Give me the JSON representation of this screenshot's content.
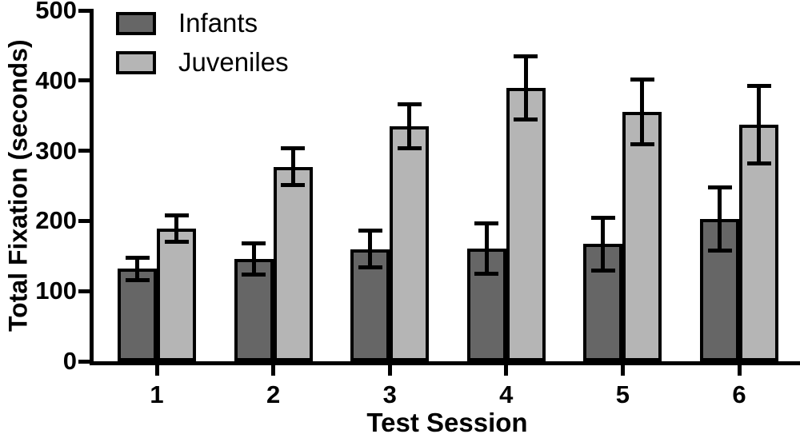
{
  "figure": {
    "background": "#ffffff",
    "axis_color": "#000000"
  },
  "chart_data": {
    "type": "bar",
    "title": "",
    "xlabel": "Test Session",
    "ylabel": "Total Fixation (seconds)",
    "categories": [
      "1",
      "2",
      "3",
      "4",
      "5",
      "6"
    ],
    "series": [
      {
        "name": "Infants",
        "color": "#666666",
        "values": [
          132,
          146,
          160,
          161,
          167,
          203
        ],
        "errors": [
          16,
          22,
          26,
          36,
          38,
          45
        ]
      },
      {
        "name": "Juveniles",
        "color": "#b5b5b5",
        "values": [
          189,
          277,
          335,
          390,
          355,
          337
        ],
        "errors": [
          19,
          26,
          31,
          45,
          46,
          55
        ]
      }
    ],
    "error_bars": true,
    "ylim": [
      0,
      500
    ],
    "yticks": [
      0,
      100,
      200,
      300,
      400,
      500
    ],
    "legend_position": "top-left",
    "grid": false
  }
}
